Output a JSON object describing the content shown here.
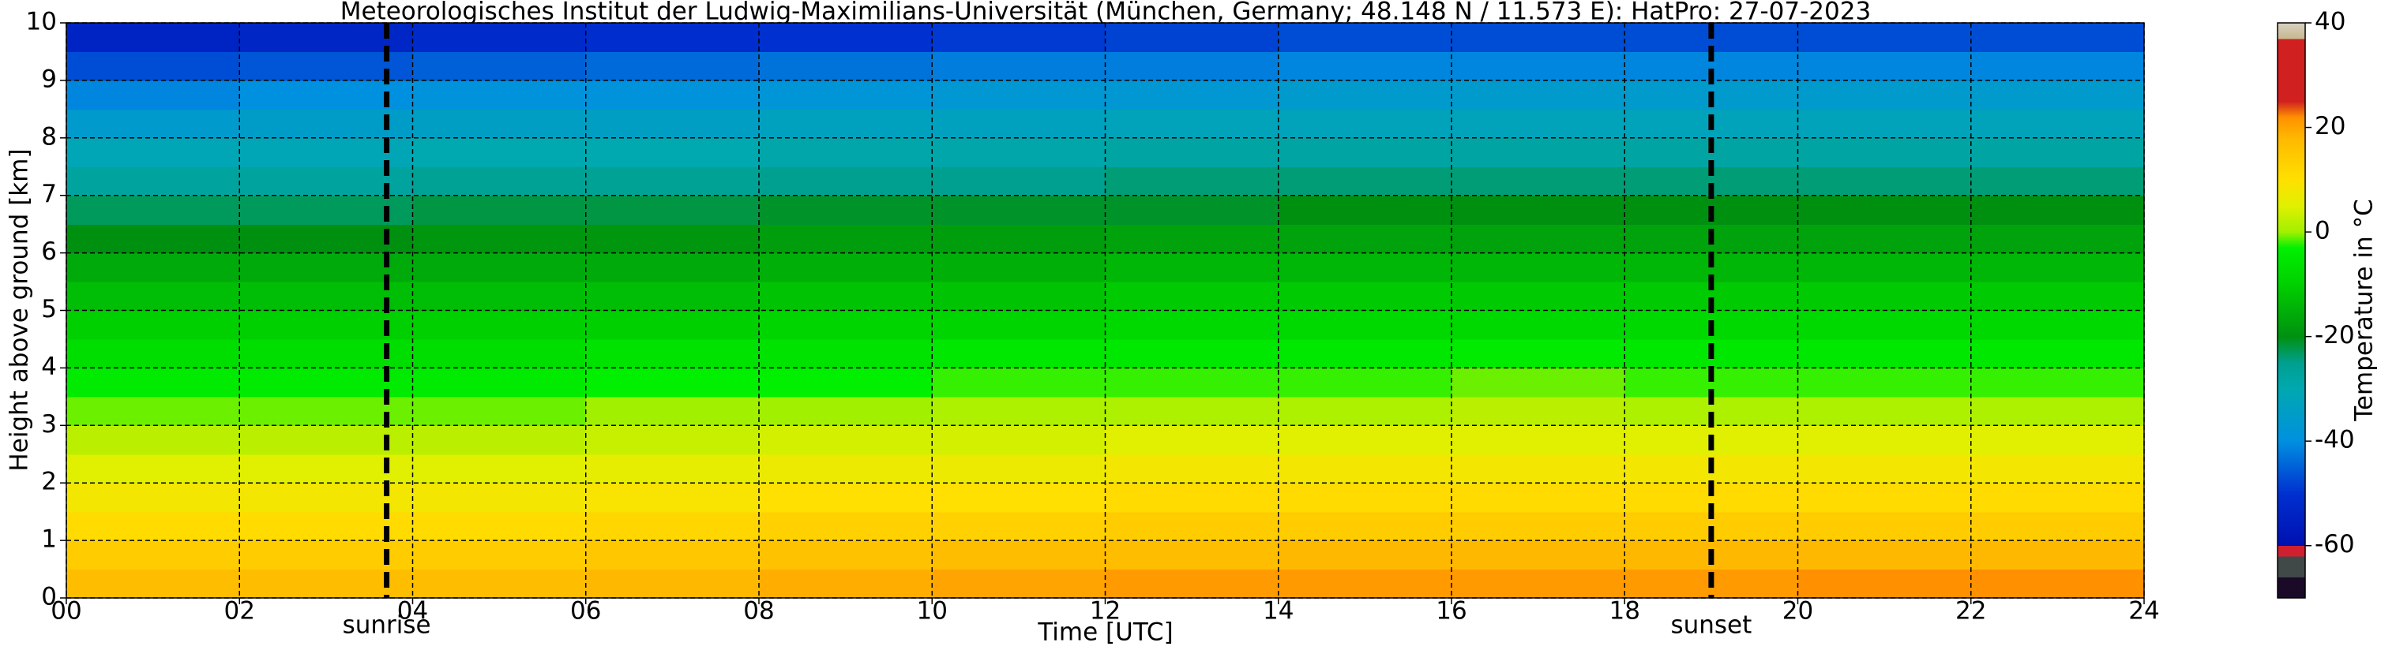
{
  "chart_data": {
    "type": "heatmap",
    "title": "Meteorologisches Institut der Ludwig-Maximilians-Universität (München, Germany; 48.148 N / 11.573 E):    HatPro: 27-07-2023",
    "xlabel": "Time [UTC]",
    "ylabel": "Height above ground [km]",
    "colorbar_label": "Temperature in °C",
    "x": [
      1,
      3,
      5,
      7,
      9,
      11,
      13,
      15,
      17,
      19,
      21,
      23
    ],
    "y": [
      0.25,
      0.75,
      1.25,
      1.75,
      2.25,
      2.75,
      3.25,
      3.75,
      4.25,
      4.75,
      5.25,
      5.75,
      6.25,
      6.75,
      7.25,
      7.75,
      8.25,
      8.75,
      9.25,
      9.75
    ],
    "values": [
      [
        17,
        17,
        17,
        18,
        19,
        20,
        21,
        21,
        21,
        21,
        22,
        22
      ],
      [
        14,
        14,
        14,
        15,
        16,
        17,
        17,
        18,
        18,
        18,
        18,
        18
      ],
      [
        11,
        11,
        11,
        12,
        13,
        13,
        14,
        14,
        14,
        14,
        14,
        14
      ],
      [
        8,
        8,
        8,
        9,
        10,
        10,
        11,
        11,
        11,
        11,
        11,
        11
      ],
      [
        5,
        5,
        5,
        6,
        7,
        7,
        8,
        8,
        8,
        8,
        8,
        8
      ],
      [
        2,
        2,
        2,
        3,
        4,
        4,
        5,
        5,
        5,
        5,
        5,
        5
      ],
      [
        -1,
        -1,
        -1,
        0,
        0,
        1,
        1,
        1,
        2,
        1,
        1,
        1
      ],
      [
        -4,
        -4,
        -4,
        -3,
        -3,
        -2,
        -2,
        -2,
        -1,
        -2,
        -2,
        -2
      ],
      [
        -7,
        -7,
        -7,
        -6,
        -6,
        -5,
        -5,
        -5,
        -4,
        -5,
        -5,
        -5
      ],
      [
        -10,
        -10,
        -10,
        -10,
        -9,
        -9,
        -8,
        -8,
        -8,
        -8,
        -8,
        -8
      ],
      [
        -13,
        -13,
        -13,
        -13,
        -12,
        -12,
        -11,
        -11,
        -11,
        -11,
        -11,
        -11
      ],
      [
        -16,
        -16,
        -16,
        -16,
        -15,
        -15,
        -14,
        -14,
        -14,
        -14,
        -14,
        -14
      ],
      [
        -20,
        -20,
        -19,
        -19,
        -18,
        -18,
        -17,
        -17,
        -17,
        -17,
        -17,
        -17
      ],
      [
        -23,
        -23,
        -22,
        -22,
        -21,
        -21,
        -21,
        -20,
        -20,
        -20,
        -20,
        -20
      ],
      [
        -27,
        -27,
        -26,
        -26,
        -25,
        -25,
        -24,
        -24,
        -24,
        -24,
        -24,
        -24
      ],
      [
        -31,
        -31,
        -30,
        -30,
        -29,
        -29,
        -28,
        -28,
        -28,
        -28,
        -28,
        -28
      ],
      [
        -36,
        -35,
        -34,
        -34,
        -33,
        -33,
        -32,
        -32,
        -32,
        -32,
        -32,
        -32
      ],
      [
        -41,
        -40,
        -39,
        -39,
        -38,
        -37,
        -37,
        -36,
        -36,
        -36,
        -36,
        -36
      ],
      [
        -47,
        -46,
        -45,
        -44,
        -43,
        -42,
        -42,
        -41,
        -41,
        -41,
        -41,
        -41
      ],
      [
        -54,
        -53,
        -52,
        -51,
        -50,
        -49,
        -48,
        -47,
        -47,
        -47,
        -47,
        -47
      ]
    ],
    "xlim": [
      0,
      24
    ],
    "xticks": [
      {
        "value": 0,
        "label": "00"
      },
      {
        "value": 2,
        "label": "02"
      },
      {
        "value": 4,
        "label": "04"
      },
      {
        "value": 6,
        "label": "06"
      },
      {
        "value": 8,
        "label": "08"
      },
      {
        "value": 10,
        "label": "10"
      },
      {
        "value": 12,
        "label": "12"
      },
      {
        "value": 14,
        "label": "14"
      },
      {
        "value": 16,
        "label": "16"
      },
      {
        "value": 18,
        "label": "18"
      },
      {
        "value": 20,
        "label": "20"
      },
      {
        "value": 22,
        "label": "22"
      },
      24
    ],
    "ylim": [
      0,
      10
    ],
    "yticks": [
      0,
      1,
      2,
      3,
      4,
      5,
      6,
      7,
      8,
      9,
      10
    ],
    "grid": true,
    "clim": [
      -70,
      40
    ],
    "cticks": [
      -60,
      -40,
      -20,
      0,
      20,
      40
    ],
    "colormap": [
      [
        -70,
        "#1a0a28"
      ],
      [
        -66,
        "#1a0a28"
      ],
      [
        -66,
        "#404848"
      ],
      [
        -62,
        "#404848"
      ],
      [
        -62,
        "#d02030"
      ],
      [
        -60,
        "#d02030"
      ],
      [
        -60,
        "#0010b0"
      ],
      [
        -50,
        "#0030d0"
      ],
      [
        -40,
        "#0090e0"
      ],
      [
        -30,
        "#00a8b0"
      ],
      [
        -25,
        "#00a090"
      ],
      [
        -20,
        "#009010"
      ],
      [
        -10,
        "#00d000"
      ],
      [
        -3,
        "#00f000"
      ],
      [
        0,
        "#a0f000"
      ],
      [
        5,
        "#e0f000"
      ],
      [
        10,
        "#ffe000"
      ],
      [
        18,
        "#ffb800"
      ],
      [
        22,
        "#ff9000"
      ],
      [
        25,
        "#d02020"
      ],
      [
        37,
        "#d02020"
      ],
      [
        37,
        "#c8b890"
      ],
      [
        40,
        "#d8d0c0"
      ]
    ],
    "annotations": [
      {
        "text": "sunrise",
        "x": 3.7
      },
      {
        "text": "sunset",
        "x": 19.0
      }
    ]
  }
}
